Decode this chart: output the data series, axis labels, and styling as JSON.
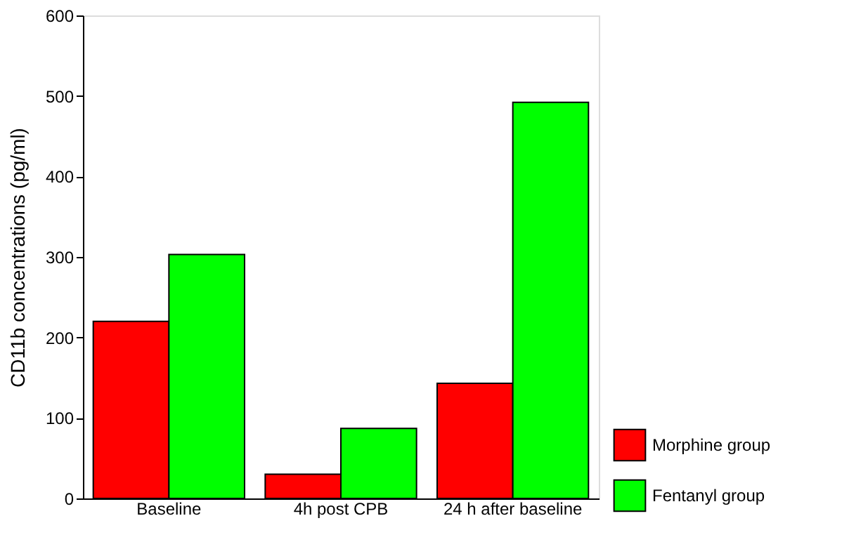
{
  "chart_data": {
    "type": "bar",
    "ylabel": "CD11b concentrations (pg/ml)",
    "categories": [
      "Baseline",
      "4h post CPB",
      "24 h after baseline"
    ],
    "series": [
      {
        "name": "Morphine group",
        "color": "#ff0000",
        "values": [
          220,
          30,
          143
        ]
      },
      {
        "name": "Fentanyl group",
        "color": "#00ff00",
        "values": [
          303,
          87,
          492
        ]
      }
    ],
    "ylim": [
      0,
      600
    ],
    "yticks": [
      0,
      100,
      200,
      300,
      400,
      500,
      600
    ],
    "grid": false,
    "legend": "bottom right"
  }
}
